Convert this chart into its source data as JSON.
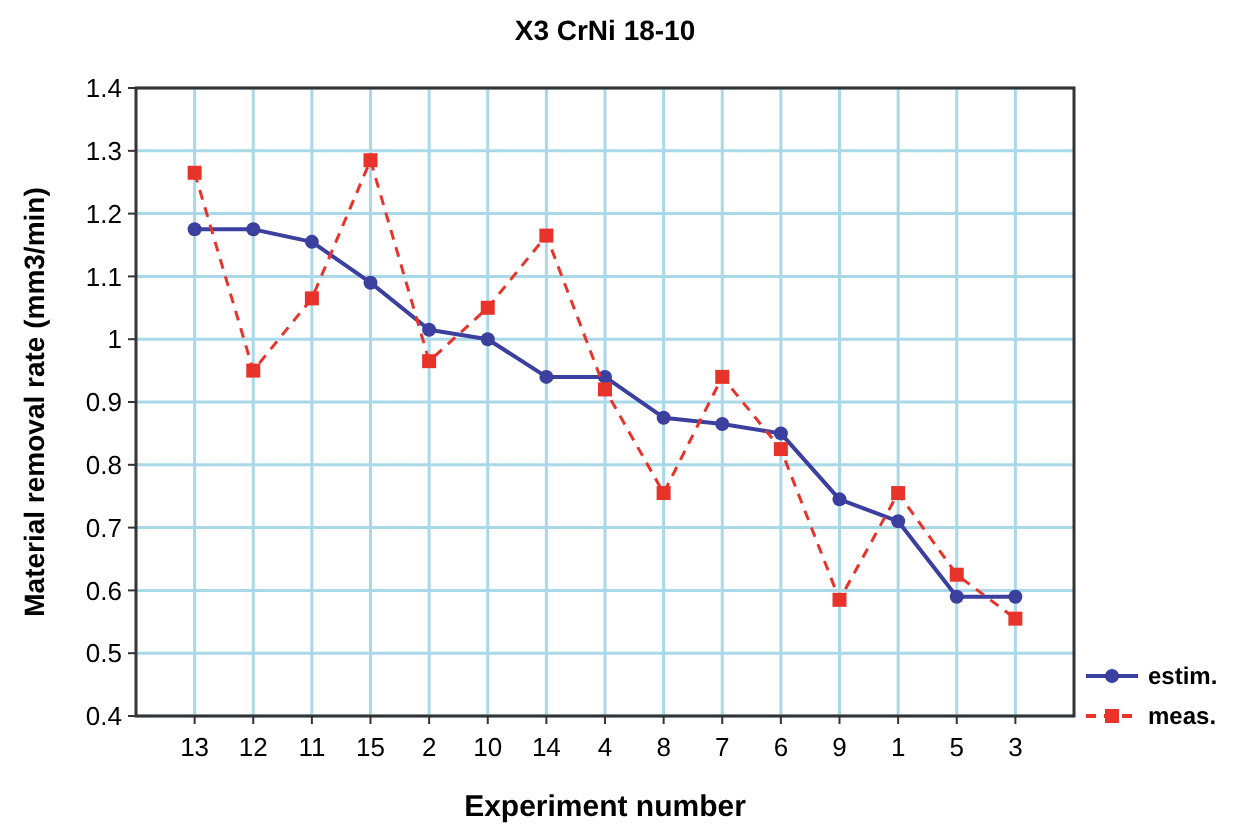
{
  "chart_data": {
    "type": "line",
    "title": "X3 CrNi 18-10",
    "xlabel": "Experiment number",
    "ylabel": "Material removal rate (mm3/min)",
    "categories": [
      "13",
      "12",
      "11",
      "15",
      "2",
      "10",
      "14",
      "4",
      "8",
      "7",
      "6",
      "9",
      "1",
      "5",
      "3"
    ],
    "series": [
      {
        "name": "estim.",
        "color": "#3b3f9e",
        "marker": "circle",
        "line_style": "solid",
        "values": [
          1.175,
          1.175,
          1.155,
          1.09,
          1.015,
          1.0,
          0.94,
          0.94,
          0.875,
          0.865,
          0.85,
          0.745,
          0.71,
          0.59,
          0.59
        ]
      },
      {
        "name": "meas.",
        "color": "#e8332a",
        "marker": "square",
        "line_style": "dashed",
        "values": [
          1.265,
          0.95,
          1.065,
          1.285,
          0.965,
          1.05,
          1.165,
          0.92,
          0.755,
          0.94,
          0.825,
          0.585,
          0.755,
          0.625,
          0.555
        ]
      }
    ],
    "ylim": [
      0.4,
      1.4
    ],
    "yticks": [
      0.4,
      0.5,
      0.6,
      0.7,
      0.8,
      0.9,
      1,
      1.1,
      1.2,
      1.3,
      1.4
    ],
    "grid": true,
    "legend": "bottom right"
  }
}
